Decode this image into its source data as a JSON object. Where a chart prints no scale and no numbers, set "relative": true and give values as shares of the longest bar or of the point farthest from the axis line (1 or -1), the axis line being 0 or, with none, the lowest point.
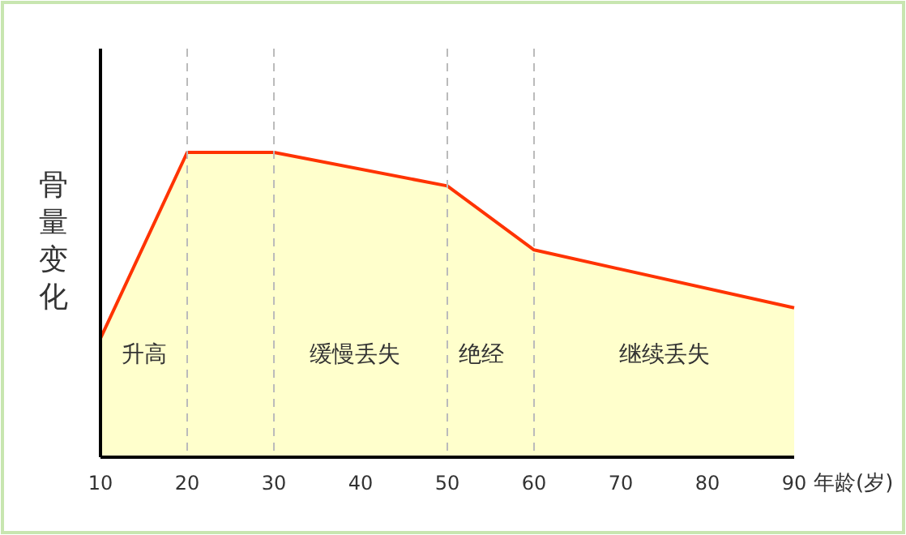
{
  "chart_data": {
    "type": "area",
    "xlabel": "年龄(岁)",
    "ylabel": "骨量变化",
    "relative": true,
    "x": [
      10,
      20,
      30,
      50,
      60,
      90
    ],
    "series": [
      {
        "color": "#ff3300",
        "values": [
          0.39,
          1,
          1,
          0.89,
          0.68,
          0.49
        ]
      }
    ],
    "xlim": [
      10,
      90
    ],
    "xticks": [
      10,
      20,
      30,
      40,
      50,
      60,
      70,
      80,
      90
    ],
    "ref_lines": [
      {
        "axis": "x",
        "value": 20,
        "color": "#bbbbbb",
        "line_style": "dashed"
      },
      {
        "axis": "x",
        "value": 30,
        "color": "#bbbbbb",
        "line_style": "dashed"
      },
      {
        "axis": "x",
        "value": 50,
        "color": "#bbbbbb",
        "line_style": "dashed"
      },
      {
        "axis": "x",
        "value": 60,
        "color": "#bbbbbb",
        "line_style": "dashed"
      }
    ],
    "annotations": [
      "升高",
      "缓慢丢失",
      "绝经",
      "继续丢失"
    ]
  }
}
